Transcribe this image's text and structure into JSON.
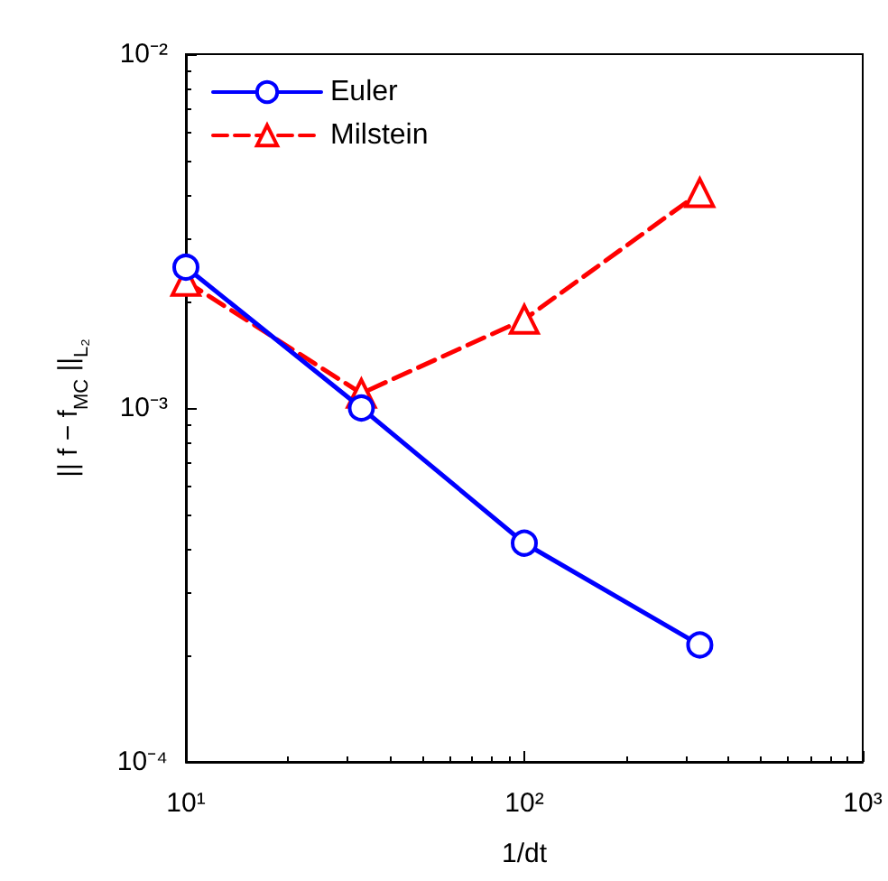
{
  "chart_data": {
    "type": "line",
    "xlabel": "1/dt",
    "ylabel": "|| f − f$_{MC}$ ||$_{L₂}$",
    "log": "xy",
    "x": [
      10,
      33,
      100,
      330
    ],
    "series": [
      {
        "name": "Euler",
        "color": "#0000ff",
        "values": [
          0.0025,
          0.001,
          0.000415,
          0.000214
        ],
        "marker": "circle",
        "line_style": "solid"
      },
      {
        "name": "Milstein",
        "color": "#ff0000",
        "values": [
          0.00228,
          0.0011,
          0.00178,
          0.00406
        ],
        "marker": "triangle",
        "line_style": "dashed"
      }
    ],
    "xlim": [
      10,
      1000
    ],
    "xticks": [
      {
        "value": 10,
        "label": "10¹"
      },
      {
        "value": 100,
        "label": "10²"
      },
      {
        "value": 1000,
        "label": "10³"
      }
    ],
    "ylim": [
      0.0001,
      0.01
    ],
    "yticks": [
      {
        "value": 0.0001,
        "label": "10⁻⁴"
      },
      {
        "value": 0.001,
        "label": "10⁻³"
      },
      {
        "value": 0.01,
        "label": "10⁻²"
      }
    ],
    "grid": false,
    "legend": "top left"
  }
}
